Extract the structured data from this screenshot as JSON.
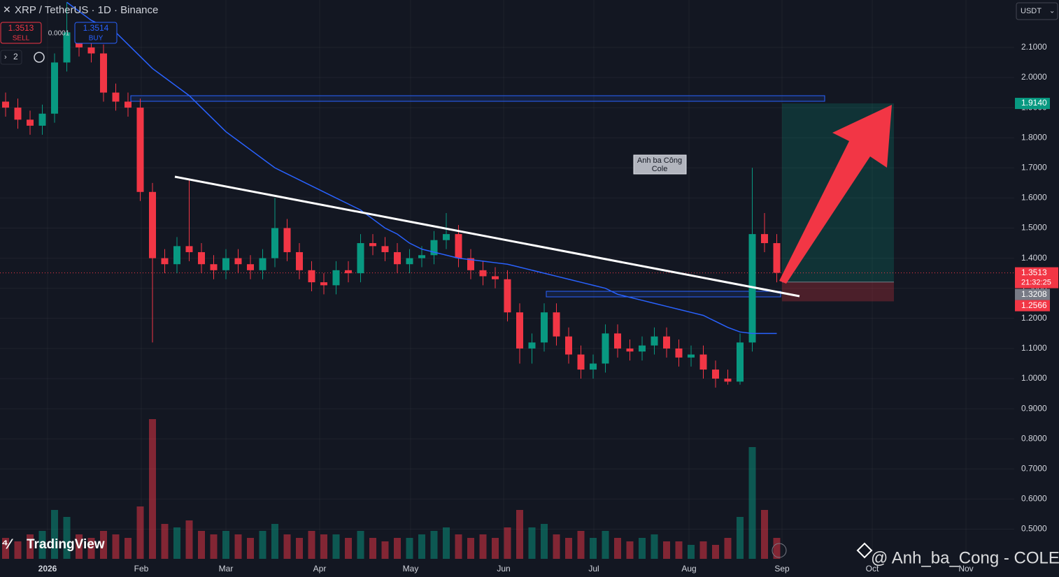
{
  "header": {
    "symbol": "XRP / TetherUS · 1D · Binance",
    "sell_price": "1.3513",
    "sell_label": "SELL",
    "spread": "0.0001",
    "buy_price": "1.3514",
    "buy_label": "BUY",
    "indicator_count": "2",
    "currency": "USDT"
  },
  "chart_data": {
    "type": "candlestick",
    "open": [
      1.92,
      1.9,
      1.86,
      1.84,
      1.88,
      2.05,
      2.15,
      2.1,
      2.08,
      1.95,
      1.92,
      1.9,
      1.62,
      1.4,
      1.38,
      1.44,
      1.42,
      1.38,
      1.36,
      1.4,
      1.38,
      1.36,
      1.4,
      1.5,
      1.42,
      1.36,
      1.32,
      1.31,
      1.36,
      1.35,
      1.45,
      1.44,
      1.42,
      1.38,
      1.4,
      1.41,
      1.46,
      1.48,
      1.4,
      1.36,
      1.34,
      1.33,
      1.22,
      1.1,
      1.12,
      1.22,
      1.14,
      1.08,
      1.03,
      1.05,
      1.15,
      1.1,
      1.09,
      1.11,
      1.14,
      1.1,
      1.07,
      1.08,
      1.03,
      1.0,
      0.99,
      1.12,
      1.48,
      1.45
    ],
    "high": [
      1.95,
      1.93,
      1.89,
      1.91,
      2.08,
      2.25,
      2.18,
      2.13,
      2.11,
      1.98,
      1.95,
      1.93,
      1.65,
      1.43,
      1.47,
      1.66,
      1.45,
      1.41,
      1.43,
      1.43,
      1.41,
      1.43,
      1.6,
      1.53,
      1.45,
      1.39,
      1.35,
      1.39,
      1.39,
      1.48,
      1.48,
      1.47,
      1.45,
      1.43,
      1.44,
      1.49,
      1.55,
      1.51,
      1.43,
      1.39,
      1.37,
      1.36,
      1.25,
      1.15,
      1.25,
      1.25,
      1.17,
      1.11,
      1.08,
      1.18,
      1.18,
      1.13,
      1.14,
      1.17,
      1.17,
      1.13,
      1.11,
      1.11,
      1.06,
      1.03,
      1.15,
      1.7,
      1.55,
      1.48
    ],
    "low": [
      1.87,
      1.83,
      1.81,
      1.81,
      1.85,
      2.02,
      2.07,
      2.05,
      1.92,
      1.89,
      1.87,
      1.59,
      1.12,
      1.35,
      1.35,
      1.39,
      1.35,
      1.33,
      1.33,
      1.35,
      1.33,
      1.33,
      1.37,
      1.39,
      1.33,
      1.29,
      1.28,
      1.28,
      1.32,
      1.32,
      1.41,
      1.39,
      1.35,
      1.35,
      1.37,
      1.38,
      1.43,
      1.37,
      1.33,
      1.31,
      1.3,
      1.19,
      1.05,
      1.05,
      1.09,
      1.11,
      1.05,
      1.0,
      1.0,
      1.02,
      1.07,
      1.06,
      1.06,
      1.08,
      1.07,
      1.04,
      1.04,
      1.0,
      0.97,
      0.98,
      0.98,
      1.09,
      1.42,
      1.32
    ],
    "close": [
      1.9,
      1.86,
      1.84,
      1.88,
      2.05,
      2.15,
      2.1,
      2.08,
      1.95,
      1.92,
      1.9,
      1.62,
      1.4,
      1.38,
      1.44,
      1.42,
      1.38,
      1.36,
      1.4,
      1.38,
      1.36,
      1.4,
      1.5,
      1.42,
      1.36,
      1.32,
      1.31,
      1.36,
      1.35,
      1.45,
      1.44,
      1.42,
      1.38,
      1.4,
      1.41,
      1.46,
      1.48,
      1.4,
      1.36,
      1.34,
      1.33,
      1.22,
      1.1,
      1.12,
      1.22,
      1.14,
      1.08,
      1.03,
      1.05,
      1.15,
      1.1,
      1.09,
      1.11,
      1.14,
      1.1,
      1.07,
      1.08,
      1.03,
      1.0,
      0.99,
      1.12,
      1.48,
      1.45,
      1.3513
    ],
    "ma": [
      null,
      null,
      null,
      null,
      null,
      2.25,
      2.22,
      2.19,
      2.17,
      2.15,
      2.11,
      2.07,
      2.03,
      2.0,
      1.97,
      1.94,
      1.9,
      1.86,
      1.82,
      1.79,
      1.76,
      1.73,
      1.7,
      1.68,
      1.66,
      1.64,
      1.62,
      1.6,
      1.58,
      1.56,
      1.53,
      1.5,
      1.48,
      1.45,
      1.43,
      1.42,
      1.41,
      1.4,
      1.395,
      1.39,
      1.385,
      1.38,
      1.37,
      1.36,
      1.35,
      1.34,
      1.33,
      1.32,
      1.31,
      1.3,
      1.28,
      1.27,
      1.26,
      1.25,
      1.24,
      1.23,
      1.22,
      1.21,
      1.19,
      1.17,
      1.155,
      1.15,
      1.15,
      1.15
    ],
    "volume": [
      30,
      25,
      35,
      40,
      70,
      60,
      35,
      30,
      40,
      35,
      30,
      75,
      200,
      50,
      45,
      55,
      40,
      35,
      40,
      35,
      30,
      40,
      50,
      35,
      30,
      40,
      35,
      35,
      30,
      40,
      30,
      25,
      30,
      30,
      35,
      40,
      45,
      35,
      30,
      35,
      30,
      45,
      70,
      45,
      50,
      35,
      30,
      40,
      30,
      40,
      30,
      25,
      30,
      35,
      25,
      25,
      20,
      25,
      20,
      30,
      60,
      160,
      70,
      30
    ],
    "up_color": "#089981",
    "down_color": "#f23645",
    "ma_color": "#2962ff",
    "ylim": [
      0.4014,
      2.2575
    ],
    "yticks": [
      {
        "value": 0.5,
        "label": "0.5000"
      },
      {
        "value": 0.6,
        "label": "0.6000"
      },
      {
        "value": 0.7,
        "label": "0.7000"
      },
      {
        "value": 0.8,
        "label": "0.8000"
      },
      {
        "value": 0.9,
        "label": "0.9000"
      },
      {
        "value": 1.0,
        "label": "1.0000"
      },
      {
        "value": 1.1,
        "label": "1.1000"
      },
      {
        "value": 1.2,
        "label": "1.2000"
      },
      {
        "value": 1.3,
        "label": "1.3000"
      },
      {
        "value": 1.4,
        "label": "1.4000"
      },
      {
        "value": 1.5,
        "label": "1.5000"
      },
      {
        "value": 1.6,
        "label": "1.6000"
      },
      {
        "value": 1.7,
        "label": "1.7000"
      },
      {
        "value": 1.8,
        "label": "1.8000"
      },
      {
        "value": 1.9,
        "label": "1.9000"
      },
      {
        "value": 2.0,
        "label": "2.0000"
      },
      {
        "value": 2.1,
        "label": "2.1000"
      }
    ],
    "xticks": [
      "2026",
      "Feb",
      "Mar",
      "Apr",
      "May",
      "Jun",
      "Jul",
      "Aug",
      "Sep",
      "Oct",
      "Nov"
    ],
    "grid": true,
    "last_price": 1.3513,
    "countdown": "21:32:25",
    "position": {
      "target": {
        "value": 1.914,
        "label": "1.9140"
      },
      "entry": 1.3208,
      "stop": 1.2566
    },
    "annotation": [
      "Anh ba Công",
      "Cole"
    ]
  },
  "footer": {
    "logo": "TradingView",
    "watermark": "@ Anh_ba_Cong - COLE"
  }
}
